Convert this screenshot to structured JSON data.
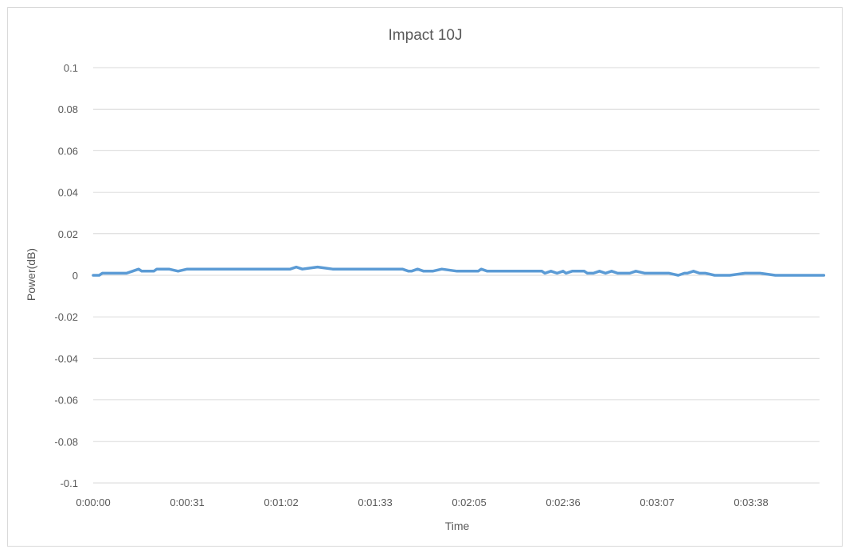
{
  "chart_data": {
    "type": "line",
    "title": "Impact 10J",
    "xlabel": "Time",
    "ylabel": "Power(dB)",
    "ylim": [
      -0.1,
      0.1
    ],
    "y_ticks": [
      "0.1",
      "0.08",
      "0.06",
      "0.04",
      "0.02",
      "0",
      "-0.02",
      "-0.04",
      "-0.06",
      "-0.08",
      "-0.1"
    ],
    "x_ticks": [
      "0:00:00",
      "0:00:31",
      "0:01:02",
      "0:01:33",
      "0:02:05",
      "0:02:36",
      "0:03:07",
      "0:03:38"
    ],
    "xlim_seconds": [
      0,
      241
    ],
    "grid": "horizontal",
    "legend": "none",
    "series_color": "#5b9bd5",
    "series": [
      {
        "x_seconds": [
          0,
          2,
          3,
          5,
          7,
          10,
          11,
          13,
          15,
          16,
          18,
          20,
          21,
          23,
          25,
          28,
          31,
          36,
          41,
          46,
          51,
          56,
          61,
          63,
          65,
          67,
          69,
          74,
          79,
          84,
          89,
          94,
          99,
          100,
          102,
          104,
          105,
          107,
          109,
          111,
          112,
          115,
          120,
          123,
          125,
          127,
          128,
          130,
          133,
          138,
          143,
          145,
          146,
          148,
          149,
          151,
          153,
          155,
          156,
          158,
          160,
          162,
          163,
          165,
          167,
          169,
          171,
          173,
          175,
          177,
          179,
          182,
          185,
          186,
          188,
          190,
          193,
          195,
          196,
          198,
          200,
          202,
          205,
          210,
          215,
          220,
          225,
          230,
          235,
          241
        ],
        "values": [
          0,
          0,
          0.001,
          0.001,
          0.001,
          0.001,
          0.001,
          0.002,
          0.003,
          0.002,
          0.002,
          0.002,
          0.003,
          0.003,
          0.003,
          0.002,
          0.003,
          0.003,
          0.003,
          0.003,
          0.003,
          0.003,
          0.003,
          0.003,
          0.003,
          0.004,
          0.003,
          0.004,
          0.003,
          0.003,
          0.003,
          0.003,
          0.003,
          0.003,
          0.003,
          0.002,
          0.002,
          0.003,
          0.002,
          0.002,
          0.002,
          0.003,
          0.002,
          0.002,
          0.002,
          0.002,
          0.003,
          0.002,
          0.002,
          0.002,
          0.002,
          0.002,
          0.002,
          0.002,
          0.001,
          0.002,
          0.001,
          0.002,
          0.001,
          0.002,
          0.002,
          0.002,
          0.001,
          0.001,
          0.002,
          0.001,
          0.002,
          0.001,
          0.001,
          0.001,
          0.002,
          0.001,
          0.001,
          0.001,
          0.001,
          0.001,
          0,
          0.001,
          0.001,
          0.002,
          0.001,
          0.001,
          0,
          0,
          0.001,
          0.001,
          0,
          0,
          0,
          0
        ]
      }
    ]
  }
}
